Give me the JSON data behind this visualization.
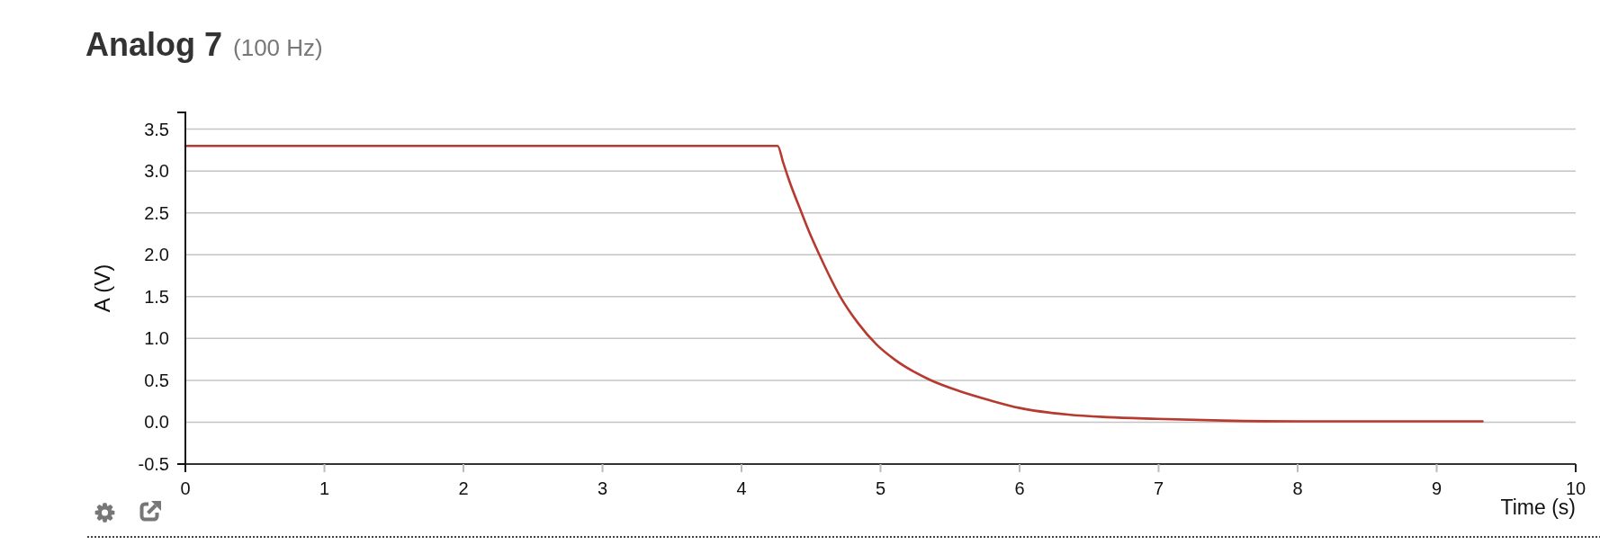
{
  "chart_data": {
    "type": "line",
    "title": "Analog 7",
    "subtitle": "(100 Hz)",
    "xlabel": "Time (s)",
    "ylabel": "A (V)",
    "x": [
      0,
      1,
      2,
      3,
      4,
      4.26,
      4.3,
      4.34,
      4.43,
      4.49,
      4.56,
      4.71,
      4.84,
      4.97,
      5.1,
      5.35,
      5.57,
      5.79,
      6.0,
      6.35,
      6.63,
      6.99,
      7.46,
      8.0,
      8.58,
      9.33
    ],
    "series": [
      {
        "color": "#b63a2f",
        "values": [
          3.3,
          3.3,
          3.3,
          3.3,
          3.3,
          3.3,
          3.1,
          2.9,
          2.51,
          2.26,
          2.0,
          1.5,
          1.18,
          0.93,
          0.75,
          0.51,
          0.37,
          0.26,
          0.17,
          0.09,
          0.06,
          0.04,
          0.02,
          0.01,
          0.01,
          0.01
        ]
      }
    ],
    "xlim": [
      0,
      10
    ],
    "ylim": [
      -0.5,
      3.7
    ],
    "xticks": [
      0,
      1,
      2,
      3,
      4,
      5,
      6,
      7,
      8,
      9,
      10
    ],
    "yticks": [
      -0.5,
      {
        "value": 0,
        "label": "0.0"
      },
      0.5,
      {
        "value": 1,
        "label": "1.0"
      },
      1.5,
      {
        "value": 2,
        "label": "2.0"
      },
      2.5,
      {
        "value": 3,
        "label": "3.0"
      },
      3.5
    ],
    "grid": "y",
    "marker": "none",
    "line_style": "solid"
  }
}
